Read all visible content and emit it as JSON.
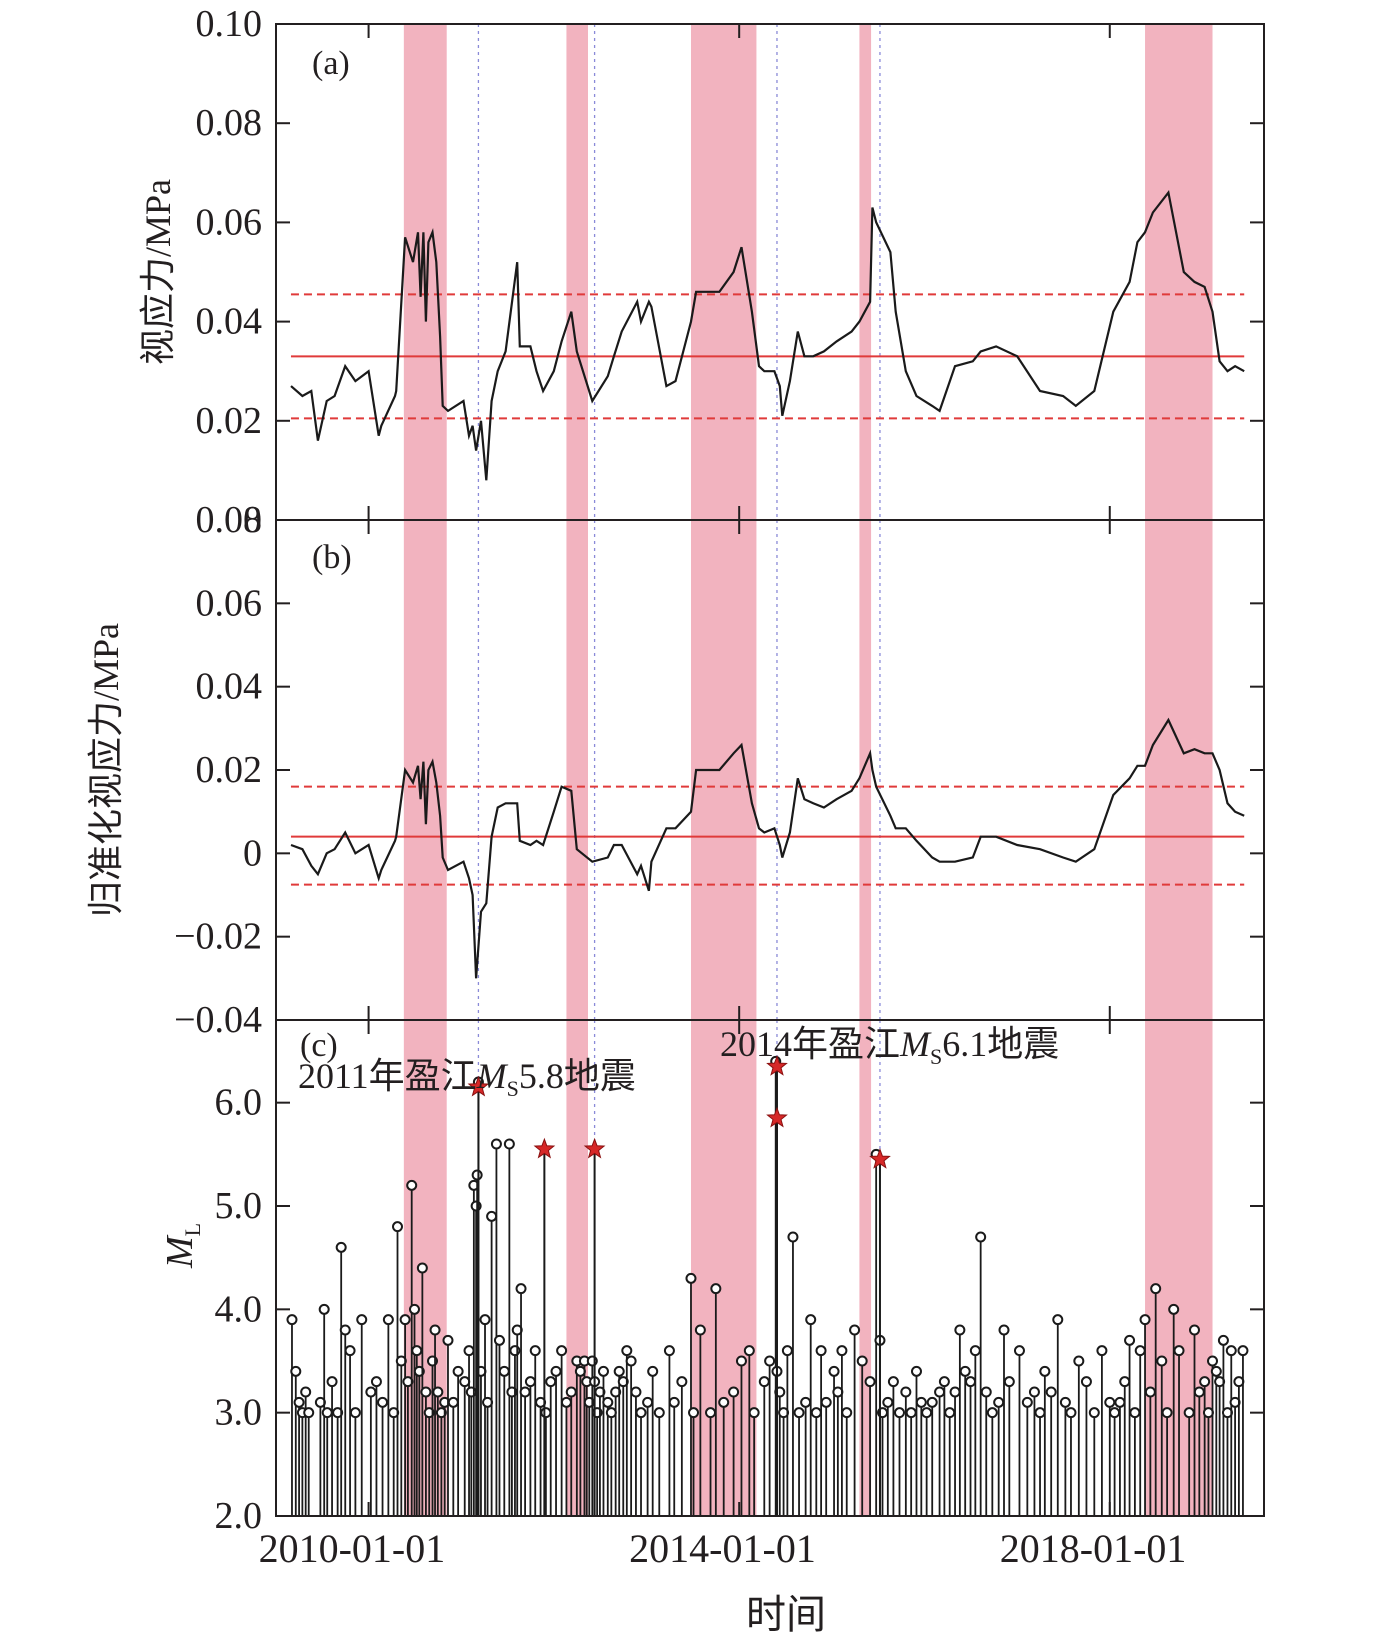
{
  "xlabel": "时间",
  "x_ticks": [
    "2010-01-01",
    "2014-01-01",
    "2018-01-01"
  ],
  "x_range": [
    "2009-01-01",
    "2019-09-01"
  ],
  "colors": {
    "shade": "#f2b3bf",
    "line": "#1a1a1a",
    "reference": "#e03a3a",
    "vline": "#8a8ad8",
    "star": "#d62828"
  },
  "shaded_periods": [
    [
      "2010-05-20",
      "2010-11-05"
    ],
    [
      "2012-02-20",
      "2012-05-15"
    ],
    [
      "2013-06-25",
      "2014-03-10"
    ],
    [
      "2015-04-20",
      "2015-06-05"
    ],
    [
      "2018-05-20",
      "2019-02-10"
    ]
  ],
  "event_lines": [
    "2011-03-10",
    "2012-06-10",
    "2014-05-30",
    "2015-07-10"
  ],
  "chart_data": [
    {
      "type": "line",
      "panel": "(a)",
      "ylabel": "视应力/MPa",
      "ylim": [
        0,
        0.1
      ],
      "y_ticks": [
        "0",
        "0.02",
        "0.04",
        "0.06",
        "0.08",
        "0.10"
      ],
      "reference_lines": {
        "mean": 0.033,
        "upper": 0.0455,
        "lower": 0.0205
      },
      "x": [
        "2009-03-01",
        "2009-04-15",
        "2009-05-20",
        "2009-06-15",
        "2009-07-20",
        "2009-08-20",
        "2009-10-01",
        "2009-11-10",
        "2010-01-01",
        "2010-02-10",
        "2010-02-20",
        "2010-04-15",
        "2010-04-20",
        "2010-05-25",
        "2010-06-25",
        "2010-07-15",
        "2010-07-25",
        "2010-08-05",
        "2010-08-15",
        "2010-08-25",
        "2010-09-10",
        "2010-09-25",
        "2010-10-10",
        "2010-10-20",
        "2010-11-10",
        "2011-01-10",
        "2011-02-01",
        "2011-02-15",
        "2011-03-01",
        "2011-03-20",
        "2011-04-10",
        "2011-05-01",
        "2011-05-25",
        "2011-06-25",
        "2011-08-10",
        "2011-08-20",
        "2011-10-01",
        "2011-10-25",
        "2011-11-20",
        "2012-01-01",
        "2012-02-01",
        "2012-03-10",
        "2012-04-01",
        "2012-06-01",
        "2012-08-01",
        "2012-08-25",
        "2012-09-25",
        "2012-11-25",
        "2012-12-10",
        "2013-01-10",
        "2013-01-20",
        "2013-03-20",
        "2013-04-25",
        "2013-06-25",
        "2013-07-15",
        "2013-10-15",
        "2013-12-10",
        "2014-01-10",
        "2014-02-20",
        "2014-03-20",
        "2014-04-10",
        "2014-05-20",
        "2014-06-10",
        "2014-06-20",
        "2014-07-20",
        "2014-08-20",
        "2014-09-15",
        "2014-10-20",
        "2014-12-01",
        "2015-01-20",
        "2015-03-20",
        "2015-04-20",
        "2015-06-01",
        "2015-06-10",
        "2015-06-25",
        "2015-08-20",
        "2015-09-10",
        "2015-10-20",
        "2015-12-01",
        "2016-02-01",
        "2016-03-01",
        "2016-05-01",
        "2016-07-10",
        "2016-08-10",
        "2016-10-10",
        "2017-01-01",
        "2017-04-01",
        "2017-07-01",
        "2017-08-20",
        "2017-11-01",
        "2018-01-15",
        "2018-03-20",
        "2018-04-20",
        "2018-05-20",
        "2018-06-20",
        "2018-08-20",
        "2018-10-20",
        "2018-12-01",
        "2019-01-10",
        "2019-02-10",
        "2019-03-10",
        "2019-04-10",
        "2019-05-10",
        "2019-06-15"
      ],
      "values": [
        0.027,
        0.025,
        0.026,
        0.016,
        0.024,
        0.025,
        0.031,
        0.028,
        0.03,
        0.017,
        0.019,
        0.025,
        0.026,
        0.057,
        0.052,
        0.058,
        0.045,
        0.058,
        0.04,
        0.056,
        0.058,
        0.052,
        0.037,
        0.023,
        0.022,
        0.024,
        0.017,
        0.019,
        0.014,
        0.02,
        0.008,
        0.024,
        0.03,
        0.034,
        0.052,
        0.035,
        0.035,
        0.03,
        0.026,
        0.03,
        0.036,
        0.042,
        0.034,
        0.024,
        0.029,
        0.033,
        0.038,
        0.044,
        0.04,
        0.044,
        0.043,
        0.027,
        0.028,
        0.04,
        0.046,
        0.046,
        0.05,
        0.055,
        0.042,
        0.031,
        0.03,
        0.03,
        0.027,
        0.021,
        0.028,
        0.038,
        0.033,
        0.033,
        0.034,
        0.036,
        0.038,
        0.04,
        0.044,
        0.063,
        0.06,
        0.054,
        0.042,
        0.03,
        0.025,
        0.023,
        0.022,
        0.031,
        0.032,
        0.034,
        0.035,
        0.033,
        0.026,
        0.025,
        0.023,
        0.026,
        0.042,
        0.048,
        0.056,
        0.058,
        0.062,
        0.066,
        0.05,
        0.048,
        0.047,
        0.042,
        0.032,
        0.03,
        0.031,
        0.03
      ]
    },
    {
      "type": "line",
      "panel": "(b)",
      "ylabel": "归准化视应力/MPa",
      "ylim": [
        -0.04,
        0.08
      ],
      "y_ticks": [
        "−0.04",
        "−0.02",
        "0",
        "0.02",
        "0.04",
        "0.06",
        "0.08"
      ],
      "reference_lines": {
        "mean": 0.004,
        "upper": 0.016,
        "lower": -0.0075
      },
      "x": [
        "2009-03-01",
        "2009-04-15",
        "2009-05-20",
        "2009-06-15",
        "2009-07-20",
        "2009-08-20",
        "2009-10-01",
        "2009-11-10",
        "2010-01-01",
        "2010-02-10",
        "2010-02-20",
        "2010-04-15",
        "2010-04-20",
        "2010-05-25",
        "2010-06-25",
        "2010-07-15",
        "2010-07-25",
        "2010-08-05",
        "2010-08-15",
        "2010-08-25",
        "2010-09-10",
        "2010-09-25",
        "2010-10-10",
        "2010-10-20",
        "2010-11-10",
        "2011-01-10",
        "2011-02-01",
        "2011-02-15",
        "2011-03-01",
        "2011-03-20",
        "2011-04-10",
        "2011-05-01",
        "2011-05-25",
        "2011-06-25",
        "2011-08-10",
        "2011-08-20",
        "2011-10-01",
        "2011-10-25",
        "2011-11-20",
        "2012-01-01",
        "2012-02-01",
        "2012-03-10",
        "2012-04-01",
        "2012-06-01",
        "2012-08-01",
        "2012-08-25",
        "2012-09-25",
        "2012-11-25",
        "2012-12-10",
        "2013-01-10",
        "2013-01-20",
        "2013-03-20",
        "2013-04-25",
        "2013-06-25",
        "2013-07-15",
        "2013-10-15",
        "2013-12-10",
        "2014-01-10",
        "2014-02-20",
        "2014-03-20",
        "2014-04-10",
        "2014-05-20",
        "2014-06-10",
        "2014-06-20",
        "2014-07-20",
        "2014-08-20",
        "2014-09-15",
        "2014-10-20",
        "2014-12-01",
        "2015-01-20",
        "2015-03-20",
        "2015-04-20",
        "2015-06-01",
        "2015-06-10",
        "2015-06-25",
        "2015-08-20",
        "2015-09-10",
        "2015-10-20",
        "2015-12-01",
        "2016-02-01",
        "2016-03-01",
        "2016-05-01",
        "2016-07-10",
        "2016-08-10",
        "2016-10-10",
        "2017-01-01",
        "2017-04-01",
        "2017-07-01",
        "2017-08-20",
        "2017-11-01",
        "2018-01-15",
        "2018-03-20",
        "2018-04-20",
        "2018-05-20",
        "2018-06-20",
        "2018-08-20",
        "2018-10-20",
        "2018-12-01",
        "2019-01-10",
        "2019-02-10",
        "2019-03-10",
        "2019-04-10",
        "2019-05-10",
        "2019-06-15"
      ],
      "values": [
        0.002,
        0.001,
        -0.003,
        -0.005,
        0.0,
        0.001,
        0.005,
        0.0,
        0.002,
        -0.006,
        -0.004,
        0.003,
        0.004,
        0.02,
        0.017,
        0.021,
        0.013,
        0.022,
        0.007,
        0.02,
        0.022,
        0.017,
        0.009,
        -0.001,
        -0.004,
        -0.002,
        -0.006,
        -0.01,
        -0.03,
        -0.014,
        -0.012,
        0.004,
        0.011,
        0.012,
        0.012,
        0.003,
        0.002,
        0.003,
        0.002,
        0.01,
        0.016,
        0.015,
        0.001,
        -0.002,
        -0.001,
        0.002,
        0.002,
        -0.005,
        -0.003,
        -0.009,
        -0.002,
        0.006,
        0.006,
        0.01,
        0.02,
        0.02,
        0.024,
        0.026,
        0.012,
        0.006,
        0.005,
        0.006,
        0.002,
        -0.001,
        0.005,
        0.018,
        0.013,
        0.012,
        0.011,
        0.013,
        0.015,
        0.018,
        0.024,
        0.02,
        0.016,
        0.009,
        0.006,
        0.006,
        0.003,
        -0.001,
        -0.002,
        -0.002,
        -0.001,
        0.004,
        0.004,
        0.002,
        0.001,
        -0.001,
        -0.002,
        0.001,
        0.014,
        0.018,
        0.021,
        0.021,
        0.026,
        0.032,
        0.024,
        0.025,
        0.024,
        0.024,
        0.02,
        0.012,
        0.01,
        0.009
      ]
    },
    {
      "type": "bar",
      "panel": "(c)",
      "ylabel": "M",
      "ylabel_sub": "L",
      "ylim": [
        2.0,
        6.8
      ],
      "y_ticks": [
        "2.0",
        "3.0",
        "4.0",
        "5.0",
        "6.0"
      ],
      "annotations": [
        {
          "prefix": "2011年盈江",
          "sym": "M",
          "sub": "S",
          "suffix": "5.8地震"
        },
        {
          "prefix": "2014年盈江",
          "sym": "M",
          "sub": "S",
          "suffix": "6.1地震"
        }
      ],
      "x": [
        "2009-03-05",
        "2009-03-20",
        "2009-04-02",
        "2009-04-15",
        "2009-04-28",
        "2009-05-10",
        "2009-06-25",
        "2009-07-10",
        "2009-07-22",
        "2009-08-10",
        "2009-09-01",
        "2009-09-15",
        "2009-10-01",
        "2009-10-20",
        "2009-11-10",
        "2009-12-05",
        "2010-01-10",
        "2010-02-01",
        "2010-02-25",
        "2010-03-20",
        "2010-04-10",
        "2010-04-25",
        "2010-05-10",
        "2010-05-25",
        "2010-06-05",
        "2010-06-20",
        "2010-07-01",
        "2010-07-10",
        "2010-07-20",
        "2010-08-01",
        "2010-08-15",
        "2010-08-28",
        "2010-09-10",
        "2010-09-20",
        "2010-10-01",
        "2010-10-15",
        "2010-10-28",
        "2010-11-10",
        "2010-12-01",
        "2010-12-20",
        "2011-01-15",
        "2011-02-01",
        "2011-02-10",
        "2011-02-20",
        "2011-03-01",
        "2011-03-05",
        "2011-03-10",
        "2011-03-20",
        "2011-04-05",
        "2011-04-15",
        "2011-05-01",
        "2011-05-20",
        "2011-06-01",
        "2011-06-20",
        "2011-07-10",
        "2011-07-20",
        "2011-08-01",
        "2011-08-10",
        "2011-08-25",
        "2011-09-10",
        "2011-10-01",
        "2011-10-20",
        "2011-11-10",
        "2011-12-01",
        "2011-12-20",
        "2012-01-10",
        "2012-02-01",
        "2012-02-20",
        "2012-03-10",
        "2012-04-01",
        "2012-04-15",
        "2012-05-01",
        "2012-05-10",
        "2012-05-20",
        "2012-06-01",
        "2012-06-10",
        "2012-06-20",
        "2012-07-01",
        "2012-07-15",
        "2012-08-01",
        "2012-08-15",
        "2012-09-01",
        "2012-09-15",
        "2012-10-01",
        "2012-10-15",
        "2012-11-01",
        "2012-11-20",
        "2012-12-10",
        "2013-01-05",
        "2013-01-25",
        "2013-02-20",
        "2013-04-01",
        "2013-04-20",
        "2013-05-20",
        "2013-06-25",
        "2013-07-05",
        "2013-08-01",
        "2013-09-10",
        "2013-10-01",
        "2013-11-01",
        "2013-12-10",
        "2014-01-10",
        "2014-02-10",
        "2014-03-01",
        "2014-04-10",
        "2014-05-01",
        "2014-05-25",
        "2014-05-30",
        "2014-06-10",
        "2014-06-25",
        "2014-07-10",
        "2014-08-01",
        "2014-08-25",
        "2014-09-20",
        "2014-10-10",
        "2014-11-01",
        "2014-11-20",
        "2014-12-10",
        "2015-01-10",
        "2015-01-25",
        "2015-02-10",
        "2015-03-01",
        "2015-04-01",
        "2015-05-01",
        "2015-06-01",
        "2015-06-25",
        "2015-07-10",
        "2015-07-20",
        "2015-08-10",
        "2015-09-01",
        "2015-09-25",
        "2015-10-20",
        "2015-11-10",
        "2015-12-01",
        "2015-12-20",
        "2016-01-10",
        "2016-02-01",
        "2016-03-01",
        "2016-03-20",
        "2016-04-10",
        "2016-05-01",
        "2016-05-20",
        "2016-06-10",
        "2016-07-01",
        "2016-07-20",
        "2016-08-10",
        "2016-09-01",
        "2016-09-25",
        "2016-10-20",
        "2016-11-10",
        "2016-12-01",
        "2017-01-10",
        "2017-02-10",
        "2017-03-10",
        "2017-04-01",
        "2017-04-20",
        "2017-05-15",
        "2017-06-10",
        "2017-07-10",
        "2017-08-01",
        "2017-09-01",
        "2017-10-01",
        "2017-11-01",
        "2017-12-01",
        "2018-01-01",
        "2018-01-20",
        "2018-02-10",
        "2018-03-01",
        "2018-03-20",
        "2018-04-10",
        "2018-05-01",
        "2018-05-20",
        "2018-06-10",
        "2018-07-01",
        "2018-07-25",
        "2018-08-15",
        "2018-09-10",
        "2018-10-01",
        "2018-11-10",
        "2018-12-01",
        "2018-12-20",
        "2019-01-10",
        "2019-01-25",
        "2019-02-10",
        "2019-02-25",
        "2019-03-10",
        "2019-03-25",
        "2019-04-10",
        "2019-04-25",
        "2019-05-10",
        "2019-05-25",
        "2019-06-10"
      ],
      "values": [
        3.9,
        3.4,
        3.1,
        3.0,
        3.2,
        3.0,
        3.1,
        4.0,
        3.0,
        3.3,
        3.0,
        4.6,
        3.8,
        3.6,
        3.0,
        3.9,
        3.2,
        3.3,
        3.1,
        3.9,
        3.0,
        4.8,
        3.5,
        3.9,
        3.3,
        5.2,
        4.0,
        3.6,
        3.4,
        4.4,
        3.2,
        3.0,
        3.5,
        3.8,
        3.2,
        3.0,
        3.1,
        3.7,
        3.1,
        3.4,
        3.3,
        3.6,
        3.2,
        5.2,
        5.0,
        5.3,
        6.2,
        3.4,
        3.9,
        3.1,
        4.9,
        5.6,
        3.7,
        3.4,
        5.6,
        3.2,
        3.6,
        3.8,
        4.2,
        3.2,
        3.3,
        3.6,
        3.1,
        3.0,
        3.3,
        3.4,
        3.6,
        3.1,
        3.2,
        3.5,
        3.4,
        3.5,
        3.3,
        3.1,
        3.5,
        3.3,
        3.0,
        3.2,
        3.4,
        3.1,
        3.0,
        3.2,
        3.4,
        3.3,
        3.6,
        3.5,
        3.2,
        3.0,
        3.1,
        3.4,
        3.0,
        3.6,
        3.1,
        3.3,
        4.3,
        3.0,
        3.8,
        3.0,
        4.2,
        3.1,
        3.2,
        3.5,
        3.6,
        3.0,
        3.3,
        3.5,
        6.4,
        3.4,
        3.2,
        3.0,
        3.6,
        4.7,
        3.0,
        3.1,
        3.9,
        3.0,
        3.6,
        3.1,
        3.4,
        3.2,
        3.6,
        3.0,
        3.8,
        3.5,
        3.3,
        5.5,
        3.7,
        3.0,
        3.1,
        3.3,
        3.0,
        3.2,
        3.0,
        3.4,
        3.1,
        3.0,
        3.1,
        3.2,
        3.3,
        3.0,
        3.2,
        3.8,
        3.4,
        3.3,
        3.6,
        4.7,
        3.2,
        3.0,
        3.1,
        3.8,
        3.3,
        3.6,
        3.1,
        3.2,
        3.0,
        3.4,
        3.2,
        3.9,
        3.1,
        3.0,
        3.5,
        3.3,
        3.0,
        3.6,
        3.1,
        3.0,
        3.1,
        3.3,
        3.7,
        3.0,
        3.6,
        3.9,
        3.2,
        4.2,
        3.5,
        3.0,
        4.0,
        3.6,
        3.0,
        3.8,
        3.2,
        3.3,
        3.0,
        3.5,
        3.4,
        3.3,
        3.7,
        3.0,
        3.6,
        3.1,
        3.3,
        3.6
      ],
      "stars": [
        {
          "x": "2011-03-10",
          "y": 6.15
        },
        {
          "x": "2011-11-25",
          "y": 5.55
        },
        {
          "x": "2012-06-10",
          "y": 5.55
        },
        {
          "x": "2014-05-30",
          "y": 6.35
        },
        {
          "x": "2014-05-30",
          "y": 5.85
        },
        {
          "x": "2015-07-10",
          "y": 5.45
        }
      ]
    }
  ]
}
